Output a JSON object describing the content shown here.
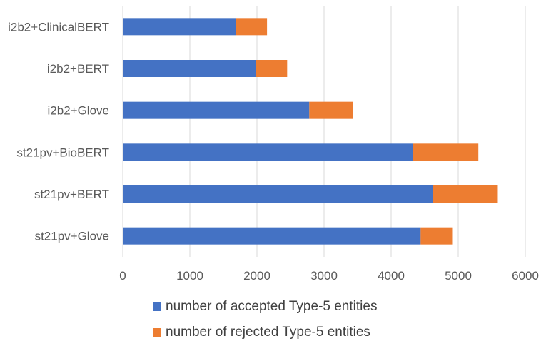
{
  "chart_data": {
    "type": "bar",
    "orientation": "horizontal",
    "stacked": true,
    "categories": [
      "i2b2+ClinicalBERT",
      "i2b2+BERT",
      "i2b2+Glove",
      "st21pv+BioBERT",
      "st21pv+BERT",
      "st21pv+Glove"
    ],
    "series": [
      {
        "name": "number of accepted Type-5 entities",
        "color": "#4472C4",
        "values": [
          1690,
          1980,
          2780,
          4320,
          4620,
          4440
        ]
      },
      {
        "name": "number of rejected Type-5 entities",
        "color": "#ED7D31",
        "values": [
          460,
          470,
          650,
          980,
          970,
          480
        ]
      }
    ],
    "xlim": [
      0,
      6000
    ],
    "x_ticks": [
      "0",
      "1000",
      "2000",
      "3000",
      "4000",
      "5000",
      "6000"
    ],
    "grid": "vertical",
    "legend_position": "bottom",
    "title": "",
    "xlabel": "",
    "ylabel": ""
  }
}
